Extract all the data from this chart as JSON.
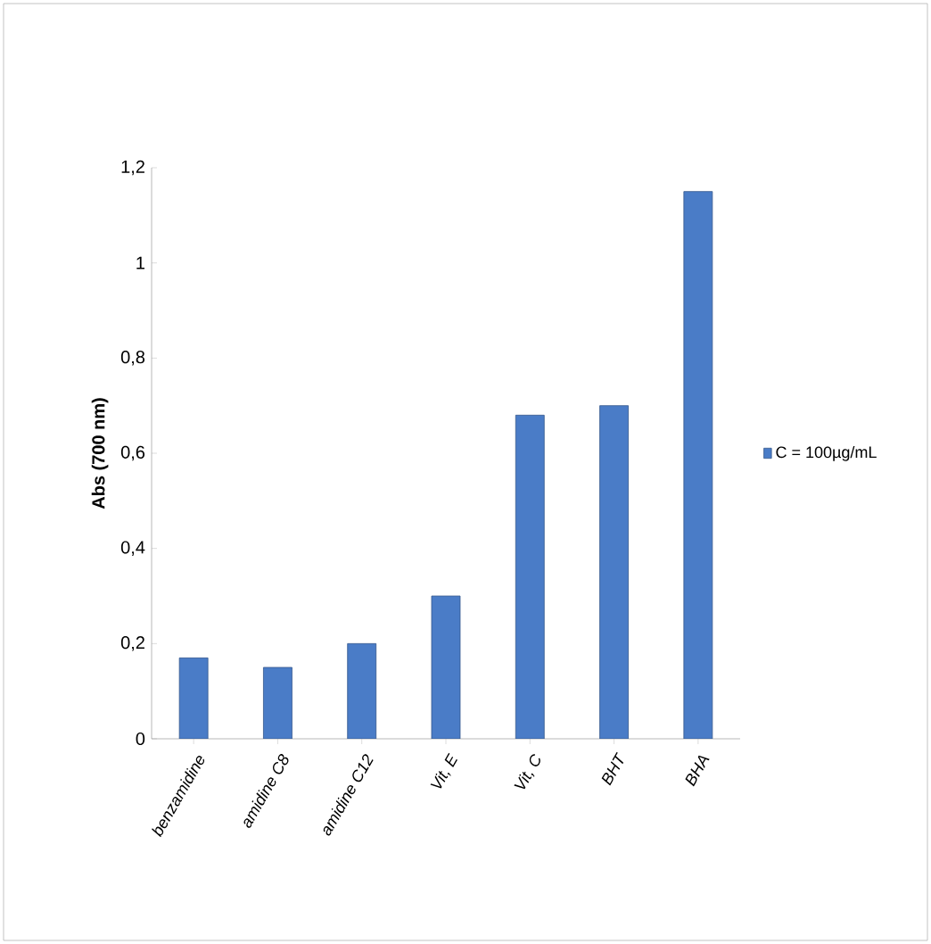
{
  "chart_data": {
    "type": "bar",
    "ylabel": "Abs (700 nm)",
    "categories": [
      "benzamidine",
      "amidine C8",
      "amidine C12",
      "Vit, E",
      "Vit, C",
      "BHT",
      "BHA"
    ],
    "series": [
      {
        "name": "C = 100µg/mL",
        "color": "#4a7cc7",
        "values": [
          0.17,
          0.15,
          0.2,
          0.3,
          0.68,
          0.7,
          1.15
        ]
      }
    ],
    "ylim": [
      0,
      1.2
    ],
    "yticks": [
      0,
      {
        "value": 0.2,
        "label": "0,2"
      },
      {
        "value": 0.4,
        "label": "0,4"
      },
      {
        "value": 0.6,
        "label": "0,6"
      },
      {
        "value": 0.8,
        "label": "0,8"
      },
      1,
      {
        "value": 1.2,
        "label": "1,2"
      }
    ],
    "grid": false,
    "legend": "right"
  }
}
